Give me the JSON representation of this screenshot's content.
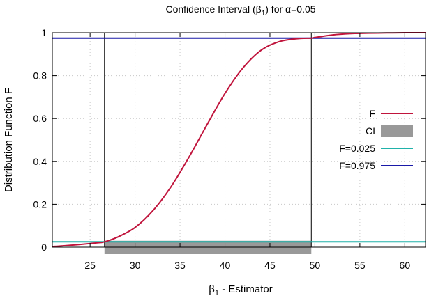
{
  "chart_data": {
    "type": "line",
    "title": "Confidence Interval (β1) for α=0.05",
    "title_parts": {
      "prefix": "Confidence Interval (β",
      "sub": "1",
      "suffix": ") for α=0.05"
    },
    "xlabel": "β1 - Estimator",
    "xlabel_parts": {
      "prefix": "β",
      "sub": "1",
      "suffix": " - Estimator"
    },
    "ylabel": "Distribution Function F",
    "xlim": [
      20.8,
      62.3
    ],
    "ylim": [
      0,
      1
    ],
    "x_ticks": [
      25,
      30,
      35,
      40,
      45,
      50,
      55,
      60
    ],
    "x_tick_labels": [
      "25",
      "30",
      "35",
      "40",
      "45",
      "50",
      "55",
      "60"
    ],
    "y_ticks": [
      0,
      0.2,
      0.4,
      0.6,
      0.8,
      1
    ],
    "y_tick_labels": [
      "0",
      "0.2",
      "0.4",
      "0.6",
      "0.8",
      "1"
    ],
    "grid": true,
    "legend_position": "right",
    "series": [
      {
        "name": "F",
        "kind": "cdf",
        "color": "#c0143c",
        "x": [
          20.8,
          22,
          24,
          26,
          26.6,
          28,
          30,
          32,
          34,
          36,
          38,
          40,
          42,
          44,
          46,
          48,
          49.6,
          50,
          52,
          54,
          56,
          58,
          60,
          62.3
        ],
        "y": [
          0.003,
          0.006,
          0.013,
          0.021,
          0.025,
          0.046,
          0.092,
          0.171,
          0.282,
          0.42,
          0.571,
          0.717,
          0.836,
          0.918,
          0.958,
          0.972,
          0.975,
          0.978,
          0.99,
          0.996,
          0.998,
          0.999,
          1.0,
          1.0
        ]
      },
      {
        "name": "CI",
        "kind": "interval",
        "color": "#999999",
        "lower": 26.6,
        "upper": 49.6
      },
      {
        "name": "F=0.025",
        "kind": "hline",
        "color": "#20b2aa",
        "value": 0.025
      },
      {
        "name": "F=0.975",
        "kind": "hline",
        "color": "#1a1aa8",
        "value": 0.975
      }
    ]
  }
}
